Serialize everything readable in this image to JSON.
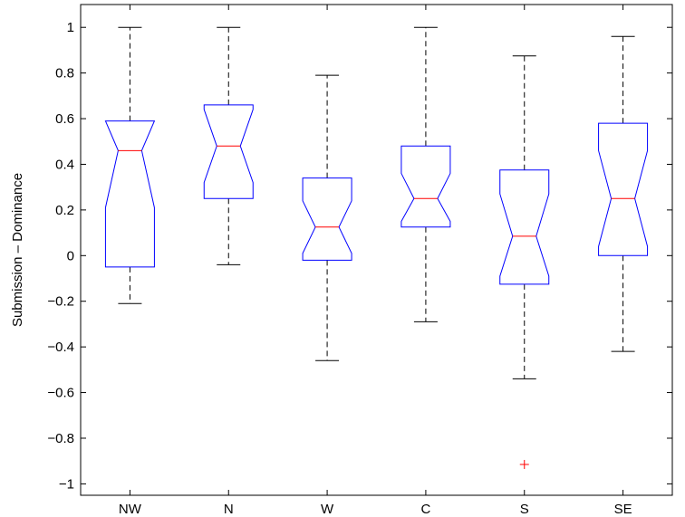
{
  "chart_data": {
    "type": "boxplot",
    "notched": true,
    "ylabel": "Submission – Dominance",
    "ylim": [
      -1.05,
      1.1
    ],
    "yticks": [
      -1,
      -0.8,
      -0.6,
      -0.4,
      -0.2,
      0,
      0.2,
      0.4,
      0.6,
      0.8,
      1
    ],
    "ytick_labels": [
      "−1",
      "−0.8",
      "−0.6",
      "−0.4",
      "−0.2",
      "0",
      "0.2",
      "0.4",
      "0.6",
      "0.8",
      "1"
    ],
    "categories": [
      "NW",
      "N",
      "W",
      "C",
      "S",
      "SE"
    ],
    "boxes": [
      {
        "category": "NW",
        "whisker_low": -0.21,
        "q1": -0.05,
        "median": 0.46,
        "q3": 0.59,
        "whisker_high": 1.0,
        "notch_low": 0.21,
        "notch_high": 0.59,
        "outliers": []
      },
      {
        "category": "N",
        "whisker_low": -0.04,
        "q1": 0.25,
        "median": 0.48,
        "q3": 0.66,
        "whisker_high": 1.0,
        "notch_low": 0.32,
        "notch_high": 0.64,
        "outliers": []
      },
      {
        "category": "W",
        "whisker_low": -0.46,
        "q1": -0.02,
        "median": 0.125,
        "q3": 0.34,
        "whisker_high": 0.79,
        "notch_low": 0.01,
        "notch_high": 0.24,
        "outliers": []
      },
      {
        "category": "C",
        "whisker_low": -0.29,
        "q1": 0.125,
        "median": 0.25,
        "q3": 0.48,
        "whisker_high": 1.0,
        "notch_low": 0.15,
        "notch_high": 0.36,
        "outliers": []
      },
      {
        "category": "S",
        "whisker_low": -0.54,
        "q1": -0.125,
        "median": 0.085,
        "q3": 0.375,
        "whisker_high": 0.875,
        "notch_low": -0.09,
        "notch_high": 0.27,
        "outliers": [
          -0.915
        ]
      },
      {
        "category": "SE",
        "whisker_low": -0.42,
        "q1": 0.0,
        "median": 0.25,
        "q3": 0.58,
        "whisker_high": 0.96,
        "notch_low": 0.04,
        "notch_high": 0.46,
        "outliers": []
      }
    ],
    "colors": {
      "box": "#0000ff",
      "median": "#ff0000",
      "whisker": "#000000",
      "outlier": "#ff0000"
    }
  }
}
